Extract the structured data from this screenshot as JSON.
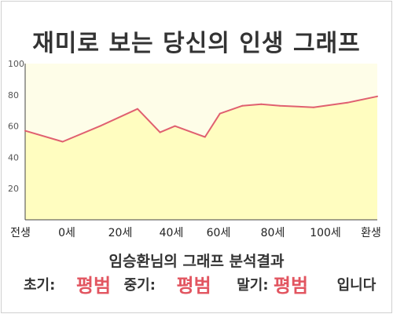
{
  "title": "재미로 보는 당신의 인생 그래프",
  "subtitle": "임승환님의 그래프 분석결과",
  "result": {
    "early_label": "초기:",
    "early_value": "평범",
    "middle_label": "중기:",
    "middle_value": "평범",
    "late_label": "말기:",
    "late_value": "평범",
    "suffix": "입니다"
  },
  "colors": {
    "line": "#e06070",
    "fill": "#fffdc0",
    "plot_bg": "#fefde8",
    "grade": "#e25560"
  },
  "chart_data": {
    "type": "area",
    "title": "재미로 보는 당신의 인생 그래프",
    "xlabel": "",
    "ylabel": "",
    "ylim": [
      0,
      100
    ],
    "yticks": [
      20,
      40,
      60,
      80,
      100
    ],
    "x_tick_labels": [
      "전생",
      "0세",
      "20세",
      "40세",
      "60세",
      "80세",
      "100세",
      "환생"
    ],
    "grid": false,
    "series": [
      {
        "x": [
          -10,
          0,
          10,
          20,
          26,
          30,
          38,
          42,
          48,
          53,
          58,
          67,
          76,
          84
        ],
        "values": [
          57,
          50,
          60,
          71,
          56,
          60,
          53,
          68,
          73,
          74,
          73,
          72,
          75,
          79
        ]
      }
    ]
  }
}
